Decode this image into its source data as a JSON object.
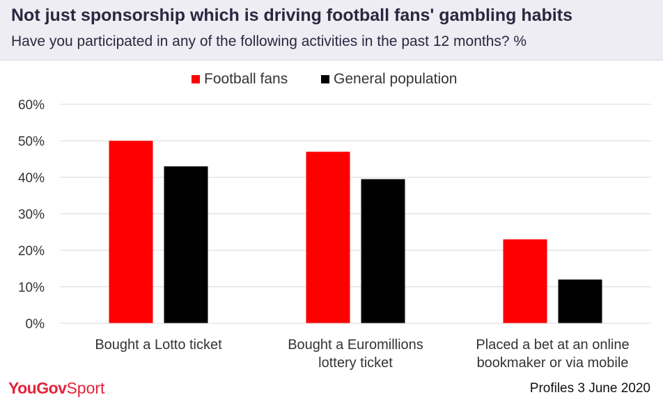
{
  "header": {
    "title": "Not just sponsorship which is driving football fans' gambling habits",
    "subtitle": "Have you participated in any of the following activities in the past 12 months? %"
  },
  "footer": {
    "logo_primary": "YouGov",
    "logo_secondary": "Sport",
    "source": "Profiles 3 June 2020"
  },
  "colors": {
    "football_fans": "#ff0000",
    "general_population": "#000000",
    "gridline": "#d9d9d9",
    "text": "#333333"
  },
  "chart_data": {
    "type": "bar",
    "title": "",
    "xlabel": "",
    "ylabel": "",
    "ylim": [
      0,
      60
    ],
    "yticks": [
      0,
      10,
      20,
      30,
      40,
      50,
      60
    ],
    "ytick_labels": [
      "0%",
      "10%",
      "20%",
      "30%",
      "40%",
      "50%",
      "60%"
    ],
    "categories": [
      [
        "Bought a Lotto ticket"
      ],
      [
        "Bought a Euromillions",
        "lottery ticket"
      ],
      [
        "Placed a bet at an online",
        "bookmaker or via mobile"
      ]
    ],
    "series": [
      {
        "name": "Football fans",
        "values": [
          50,
          47,
          23
        ]
      },
      {
        "name": "General population",
        "values": [
          43,
          39.5,
          12
        ]
      }
    ],
    "grid": true,
    "legend_position": "top-center"
  }
}
